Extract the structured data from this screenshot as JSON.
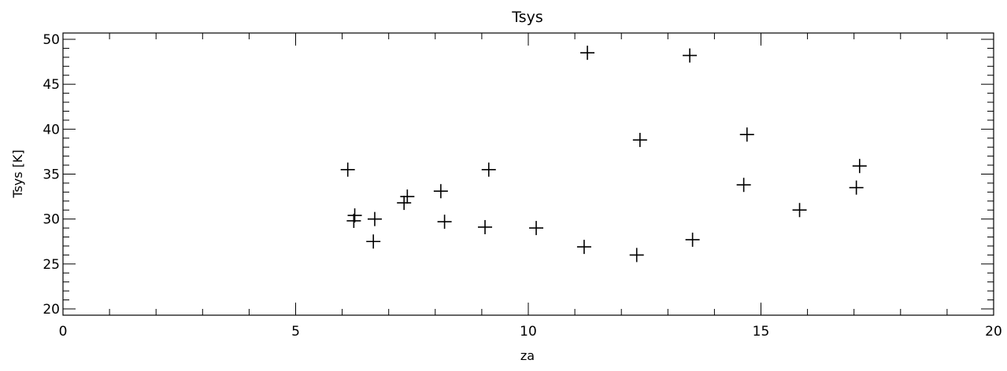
{
  "chart_data": {
    "type": "scatter",
    "title": "Tsys",
    "xlabel": "za",
    "ylabel": "Tsys [K]",
    "xlim": [
      0,
      20
    ],
    "ylim": [
      19.3,
      50.7
    ],
    "x_ticks": [
      0,
      5,
      10,
      15,
      20
    ],
    "x_tick_labels": [
      "0",
      "5",
      "10",
      "15",
      "20"
    ],
    "x_minor_step": 1,
    "y_ticks": [
      20,
      25,
      30,
      35,
      40,
      45,
      50
    ],
    "y_tick_labels": [
      "20",
      "25",
      "30",
      "35",
      "40",
      "45",
      "50"
    ],
    "y_minor_step": 1,
    "grid": false,
    "marker": "plus",
    "colors": {
      "ink": "#000000",
      "background": "#ffffff"
    },
    "points": [
      {
        "x": 6.12,
        "y": 35.5
      },
      {
        "x": 6.27,
        "y": 30.4
      },
      {
        "x": 6.25,
        "y": 29.8
      },
      {
        "x": 6.7,
        "y": 30.0
      },
      {
        "x": 6.67,
        "y": 27.5
      },
      {
        "x": 7.33,
        "y": 31.8
      },
      {
        "x": 7.4,
        "y": 32.5
      },
      {
        "x": 8.12,
        "y": 33.1
      },
      {
        "x": 8.2,
        "y": 29.7
      },
      {
        "x": 9.15,
        "y": 35.5
      },
      {
        "x": 9.07,
        "y": 29.1
      },
      {
        "x": 10.17,
        "y": 29.0
      },
      {
        "x": 11.2,
        "y": 26.9
      },
      {
        "x": 11.27,
        "y": 48.5
      },
      {
        "x": 12.33,
        "y": 26.0
      },
      {
        "x": 12.4,
        "y": 38.8
      },
      {
        "x": 13.47,
        "y": 48.2
      },
      {
        "x": 13.53,
        "y": 27.7
      },
      {
        "x": 14.63,
        "y": 33.8
      },
      {
        "x": 14.7,
        "y": 39.4
      },
      {
        "x": 15.83,
        "y": 31.0
      },
      {
        "x": 17.05,
        "y": 33.5
      },
      {
        "x": 17.12,
        "y": 35.9
      }
    ]
  }
}
